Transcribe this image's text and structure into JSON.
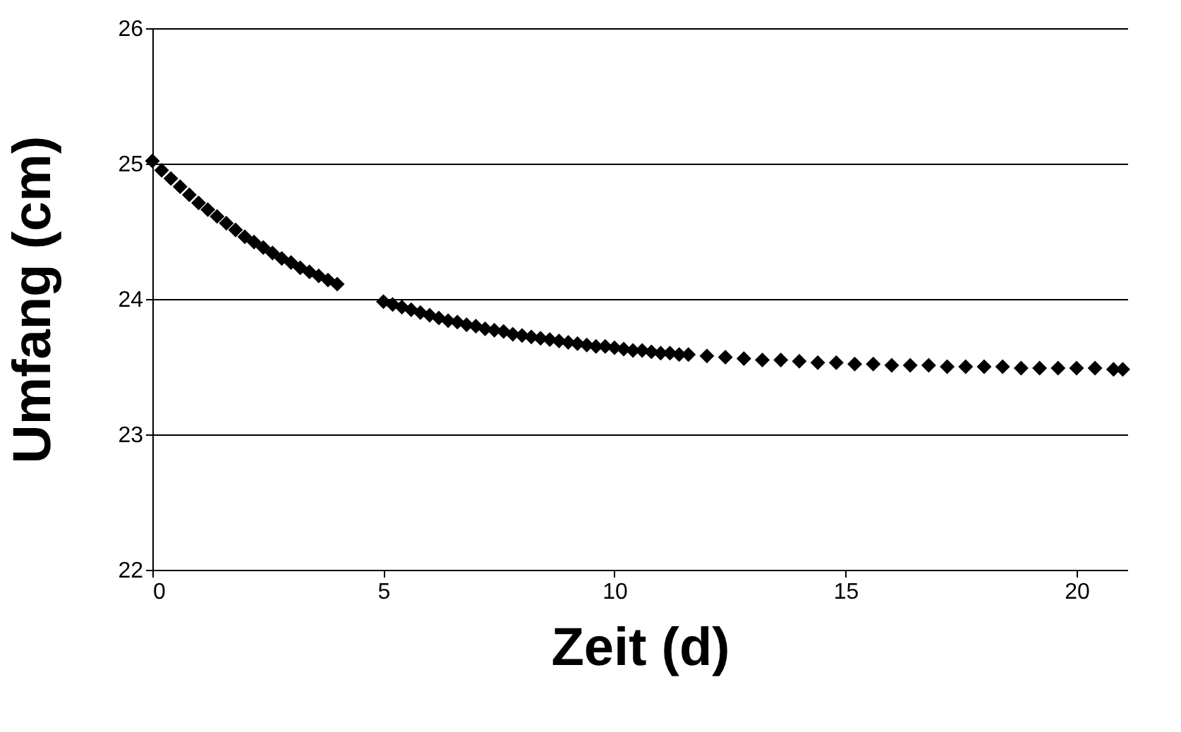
{
  "chart_data": {
    "type": "scatter",
    "xlabel": "Zeit (d)",
    "ylabel": "Umfang (cm)",
    "x": [
      0,
      0.2,
      0.4,
      0.6,
      0.8,
      1.0,
      1.2,
      1.4,
      1.6,
      1.8,
      2.0,
      2.2,
      2.4,
      2.6,
      2.8,
      3.0,
      3.2,
      3.4,
      3.6,
      3.8,
      4.0,
      5.0,
      5.2,
      5.4,
      5.6,
      5.8,
      6.0,
      6.2,
      6.4,
      6.6,
      6.8,
      7.0,
      7.2,
      7.4,
      7.6,
      7.8,
      8.0,
      8.2,
      8.4,
      8.6,
      8.8,
      9.0,
      9.2,
      9.4,
      9.6,
      9.8,
      10.0,
      10.2,
      10.4,
      10.6,
      10.8,
      11.0,
      11.2,
      11.4,
      11.6,
      12.0,
      12.4,
      12.8,
      13.2,
      13.6,
      14.0,
      14.4,
      14.8,
      15.2,
      15.6,
      16.0,
      16.4,
      16.8,
      17.2,
      17.6,
      18.0,
      18.4,
      18.8,
      19.2,
      19.6,
      20.0,
      20.4,
      20.8,
      21.0
    ],
    "series": [
      {
        "color": "#000000",
        "values": [
          25.02,
          24.95,
          24.89,
          24.83,
          24.77,
          24.71,
          24.66,
          24.61,
          24.56,
          24.51,
          24.46,
          24.42,
          24.38,
          24.34,
          24.3,
          24.27,
          24.23,
          24.2,
          24.17,
          24.14,
          24.11,
          23.98,
          23.96,
          23.94,
          23.92,
          23.9,
          23.88,
          23.86,
          23.84,
          23.83,
          23.81,
          23.8,
          23.78,
          23.77,
          23.76,
          23.74,
          23.73,
          23.72,
          23.71,
          23.7,
          23.69,
          23.68,
          23.67,
          23.66,
          23.65,
          23.65,
          23.64,
          23.63,
          23.62,
          23.62,
          23.61,
          23.6,
          23.6,
          23.59,
          23.59,
          23.58,
          23.57,
          23.56,
          23.55,
          23.55,
          23.54,
          23.53,
          23.53,
          23.52,
          23.52,
          23.51,
          23.51,
          23.51,
          23.5,
          23.5,
          23.5,
          23.5,
          23.49,
          23.49,
          23.49,
          23.49,
          23.49,
          23.48,
          23.48
        ]
      }
    ],
    "xlim": [
      0,
      21.1
    ],
    "xticks": [
      0,
      5,
      10,
      15,
      20
    ],
    "ylim": [
      22,
      26
    ],
    "yticks": [
      22,
      23,
      24,
      25,
      26
    ],
    "grid": "y",
    "marker": "diamond"
  }
}
